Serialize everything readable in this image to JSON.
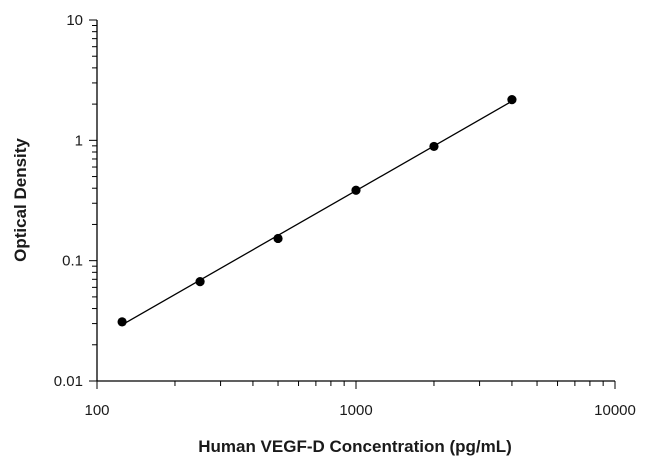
{
  "chart_data": {
    "type": "scatter",
    "title": "",
    "xlabel": "Human VEGF-D Concentration (pg/mL)",
    "ylabel": "Optical Density",
    "xscale": "log",
    "yscale": "log",
    "xlim": [
      100,
      10000
    ],
    "ylim": [
      0.01,
      10
    ],
    "x_ticks": [
      100,
      1000,
      10000
    ],
    "x_tick_labels": [
      "100",
      "1000",
      "10000"
    ],
    "y_ticks": [
      0.01,
      0.1,
      1,
      10
    ],
    "y_tick_labels": [
      "0.01",
      "0.1",
      "1",
      "10"
    ],
    "grid": false,
    "legend": "none",
    "series": [
      {
        "x": [
          125,
          250,
          500,
          1000,
          2000,
          4000
        ],
        "y": [
          0.031,
          0.067,
          0.153,
          0.385,
          0.89,
          2.18
        ],
        "marker_color": "#000000",
        "fit_line": true,
        "fit_line_color": "#000000"
      }
    ]
  }
}
